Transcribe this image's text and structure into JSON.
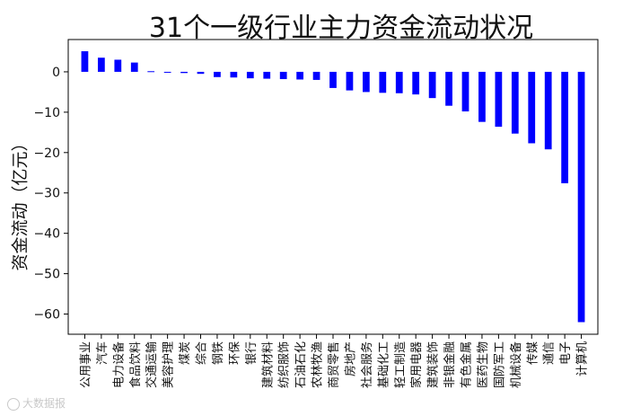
{
  "chart_data": {
    "type": "bar",
    "title": "31个一级行业主力资金流动状况",
    "ylabel": "资金流动（亿元）",
    "xlabel": "",
    "ylim": [
      -65,
      8
    ],
    "yticks": [
      0,
      -10,
      -20,
      -30,
      -40,
      -50,
      -60
    ],
    "bar_color": "#0000ff",
    "grid": false,
    "categories": [
      "公用事业",
      "汽车",
      "电力设备",
      "食品饮料",
      "交通运输",
      "美容护理",
      "煤炭",
      "综合",
      "钢铁",
      "环保",
      "银行",
      "建筑材料",
      "纺织服饰",
      "石油石化",
      "农林牧渔",
      "商贸零售",
      "房地产",
      "社会服务",
      "基础化工",
      "轻工制造",
      "家用电器",
      "建筑装饰",
      "非银金融",
      "有色金属",
      "医药生物",
      "国防军工",
      "机械设备",
      "传媒",
      "通信",
      "电子",
      "计算机"
    ],
    "values": [
      5.1,
      3.5,
      3.0,
      2.3,
      0.15,
      -0.15,
      -0.3,
      -0.5,
      -1.3,
      -1.4,
      -1.6,
      -1.7,
      -1.8,
      -1.9,
      -2.0,
      -4.0,
      -4.6,
      -5.0,
      -5.2,
      -5.3,
      -5.6,
      -6.5,
      -8.4,
      -9.8,
      -12.4,
      -13.6,
      -15.3,
      -17.7,
      -19.2,
      -27.6,
      -62.0
    ]
  },
  "watermark": "大数据报"
}
